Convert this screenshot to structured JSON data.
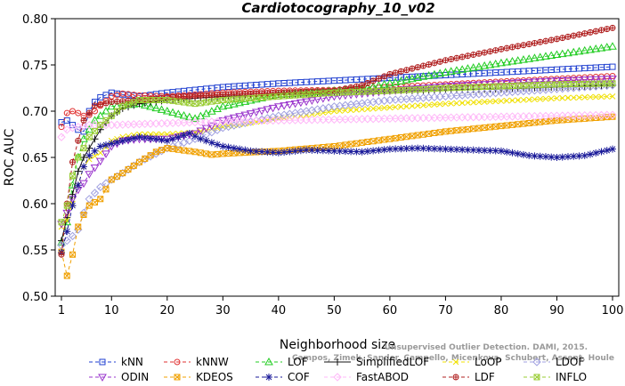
{
  "chart_data": {
    "type": "line",
    "title": "Cardiotocography_10_v02",
    "xlabel": "Neighborhood size",
    "ylabel": "ROC AUC",
    "xlim": [
      0,
      100
    ],
    "ylim": [
      0.5,
      0.8
    ],
    "xticks": [
      1,
      10,
      20,
      30,
      40,
      50,
      60,
      70,
      80,
      90,
      100
    ],
    "yticks": [
      "0.50",
      "0.55",
      "0.60",
      "0.65",
      "0.70",
      "0.75",
      "0.80"
    ],
    "grid": false,
    "legend_position": "bottom",
    "watermark": [
      "Unsupervised Outlier Detection. DAMI, 2015.",
      "Campos, Zimek, Sander, Campello, Micenkova, Schubert, Assent, Houle"
    ],
    "series": [
      {
        "name": "kNN",
        "color": "#1f3fd0",
        "marker": "square",
        "dash": "4,3",
        "anchors": [
          [
            1,
            0.688
          ],
          [
            2,
            0.69
          ],
          [
            3,
            0.685
          ],
          [
            4,
            0.68
          ],
          [
            5,
            0.678
          ],
          [
            6,
            0.7
          ],
          [
            7,
            0.71
          ],
          [
            8,
            0.715
          ],
          [
            10,
            0.72
          ],
          [
            12,
            0.718
          ],
          [
            15,
            0.716
          ],
          [
            20,
            0.72
          ],
          [
            30,
            0.726
          ],
          [
            40,
            0.73
          ],
          [
            50,
            0.733
          ],
          [
            60,
            0.736
          ],
          [
            70,
            0.739
          ],
          [
            80,
            0.742
          ],
          [
            90,
            0.745
          ],
          [
            100,
            0.748
          ]
        ]
      },
      {
        "name": "kNNW",
        "color": "#e03030",
        "marker": "circle",
        "dash": "4,3",
        "anchors": [
          [
            1,
            0.683
          ],
          [
            2,
            0.698
          ],
          [
            3,
            0.7
          ],
          [
            4,
            0.698
          ],
          [
            5,
            0.695
          ],
          [
            6,
            0.696
          ],
          [
            7,
            0.7
          ],
          [
            8,
            0.706
          ],
          [
            10,
            0.716
          ],
          [
            12,
            0.719
          ],
          [
            15,
            0.717
          ],
          [
            20,
            0.716
          ],
          [
            30,
            0.72
          ],
          [
            40,
            0.722
          ],
          [
            50,
            0.723
          ],
          [
            60,
            0.726
          ],
          [
            70,
            0.729
          ],
          [
            80,
            0.732
          ],
          [
            90,
            0.735
          ],
          [
            100,
            0.738
          ]
        ]
      },
      {
        "name": "LOF",
        "color": "#22cc22",
        "marker": "triangle",
        "dash": "4,3",
        "anchors": [
          [
            1,
            0.558
          ],
          [
            2,
            0.58
          ],
          [
            3,
            0.62
          ],
          [
            4,
            0.65
          ],
          [
            5,
            0.67
          ],
          [
            7,
            0.69
          ],
          [
            10,
            0.705
          ],
          [
            15,
            0.708
          ],
          [
            20,
            0.7
          ],
          [
            25,
            0.692
          ],
          [
            30,
            0.705
          ],
          [
            40,
            0.718
          ],
          [
            50,
            0.722
          ],
          [
            55,
            0.724
          ],
          [
            60,
            0.73
          ],
          [
            70,
            0.742
          ],
          [
            80,
            0.752
          ],
          [
            90,
            0.761
          ],
          [
            100,
            0.77
          ]
        ]
      },
      {
        "name": "SimplifiedLOF",
        "color": "#111111",
        "marker": "plus",
        "dash": "none",
        "anchors": [
          [
            1,
            0.56
          ],
          [
            2,
            0.585
          ],
          [
            3,
            0.61
          ],
          [
            4,
            0.635
          ],
          [
            5,
            0.65
          ],
          [
            6,
            0.66
          ],
          [
            8,
            0.68
          ],
          [
            10,
            0.695
          ],
          [
            12,
            0.703
          ],
          [
            15,
            0.708
          ],
          [
            20,
            0.712
          ],
          [
            30,
            0.716
          ],
          [
            40,
            0.718
          ],
          [
            50,
            0.72
          ],
          [
            60,
            0.722
          ],
          [
            70,
            0.723
          ],
          [
            80,
            0.724
          ],
          [
            90,
            0.726
          ],
          [
            100,
            0.728
          ]
        ]
      },
      {
        "name": "LoOP",
        "color": "#f0e000",
        "marker": "x",
        "dash": "4,3",
        "anchors": [
          [
            1,
            0.575
          ],
          [
            2,
            0.582
          ],
          [
            3,
            0.6
          ],
          [
            4,
            0.62
          ],
          [
            5,
            0.64
          ],
          [
            6,
            0.648
          ],
          [
            8,
            0.655
          ],
          [
            10,
            0.668
          ],
          [
            12,
            0.672
          ],
          [
            15,
            0.675
          ],
          [
            20,
            0.675
          ],
          [
            25,
            0.677
          ],
          [
            30,
            0.683
          ],
          [
            40,
            0.692
          ],
          [
            50,
            0.7
          ],
          [
            60,
            0.704
          ],
          [
            70,
            0.708
          ],
          [
            80,
            0.711
          ],
          [
            90,
            0.714
          ],
          [
            100,
            0.716
          ]
        ]
      },
      {
        "name": "LDOF",
        "color": "#a0a0e0",
        "marker": "diamond",
        "dash": "4,3",
        "anchors": [
          [
            1,
            0.555
          ],
          [
            2,
            0.56
          ],
          [
            3,
            0.565
          ],
          [
            4,
            0.572
          ],
          [
            5,
            0.59
          ],
          [
            6,
            0.605
          ],
          [
            8,
            0.618
          ],
          [
            10,
            0.626
          ],
          [
            12,
            0.633
          ],
          [
            15,
            0.645
          ],
          [
            20,
            0.66
          ],
          [
            25,
            0.67
          ],
          [
            30,
            0.682
          ],
          [
            40,
            0.695
          ],
          [
            50,
            0.705
          ],
          [
            60,
            0.712
          ],
          [
            70,
            0.716
          ],
          [
            80,
            0.72
          ],
          [
            90,
            0.724
          ],
          [
            100,
            0.728
          ]
        ]
      },
      {
        "name": "ODIN",
        "color": "#9933cc",
        "marker": "triangle-down",
        "dash": "4,3",
        "anchors": [
          [
            1,
            0.578
          ],
          [
            2,
            0.59
          ],
          [
            3,
            0.605
          ],
          [
            4,
            0.615
          ],
          [
            5,
            0.622
          ],
          [
            6,
            0.632
          ],
          [
            8,
            0.646
          ],
          [
            10,
            0.662
          ],
          [
            12,
            0.668
          ],
          [
            15,
            0.67
          ],
          [
            20,
            0.67
          ],
          [
            25,
            0.676
          ],
          [
            30,
            0.69
          ],
          [
            40,
            0.705
          ],
          [
            50,
            0.716
          ],
          [
            60,
            0.722
          ],
          [
            70,
            0.727
          ],
          [
            80,
            0.73
          ],
          [
            90,
            0.733
          ],
          [
            100,
            0.735
          ]
        ]
      },
      {
        "name": "KDEOS",
        "color": "#f0a000",
        "marker": "square-x",
        "dash": "4,3",
        "anchors": [
          [
            1,
            0.548
          ],
          [
            2,
            0.522
          ],
          [
            3,
            0.545
          ],
          [
            4,
            0.575
          ],
          [
            5,
            0.588
          ],
          [
            6,
            0.598
          ],
          [
            8,
            0.605
          ],
          [
            10,
            0.626
          ],
          [
            12,
            0.633
          ],
          [
            15,
            0.645
          ],
          [
            18,
            0.656
          ],
          [
            20,
            0.66
          ],
          [
            25,
            0.656
          ],
          [
            28,
            0.653
          ],
          [
            30,
            0.654
          ],
          [
            40,
            0.657
          ],
          [
            50,
            0.662
          ],
          [
            60,
            0.67
          ],
          [
            70,
            0.678
          ],
          [
            80,
            0.684
          ],
          [
            90,
            0.69
          ],
          [
            100,
            0.694
          ]
        ]
      },
      {
        "name": "COF",
        "color": "#1a1a99",
        "marker": "star",
        "dash": "4,3",
        "anchors": [
          [
            1,
            0.547
          ],
          [
            2,
            0.57
          ],
          [
            3,
            0.598
          ],
          [
            4,
            0.62
          ],
          [
            5,
            0.64
          ],
          [
            6,
            0.652
          ],
          [
            8,
            0.662
          ],
          [
            10,
            0.665
          ],
          [
            12,
            0.668
          ],
          [
            15,
            0.672
          ],
          [
            18,
            0.67
          ],
          [
            20,
            0.668
          ],
          [
            22,
            0.672
          ],
          [
            24,
            0.676
          ],
          [
            26,
            0.67
          ],
          [
            30,
            0.662
          ],
          [
            35,
            0.657
          ],
          [
            40,
            0.655
          ],
          [
            45,
            0.658
          ],
          [
            50,
            0.657
          ],
          [
            55,
            0.656
          ],
          [
            60,
            0.659
          ],
          [
            65,
            0.66
          ],
          [
            70,
            0.659
          ],
          [
            75,
            0.658
          ],
          [
            80,
            0.657
          ],
          [
            85,
            0.652
          ],
          [
            90,
            0.65
          ],
          [
            95,
            0.652
          ],
          [
            100,
            0.659
          ]
        ]
      },
      {
        "name": "FastABOD",
        "color": "#ffb8f8",
        "marker": "diamond",
        "dash": "4,3",
        "anchors": [
          [
            1,
            0.672
          ],
          [
            2,
            0.68
          ],
          [
            3,
            0.682
          ],
          [
            4,
            0.683
          ],
          [
            5,
            0.684
          ],
          [
            6,
            0.685
          ],
          [
            8,
            0.685
          ],
          [
            10,
            0.685
          ],
          [
            15,
            0.686
          ],
          [
            20,
            0.687
          ],
          [
            30,
            0.689
          ],
          [
            40,
            0.69
          ],
          [
            50,
            0.691
          ],
          [
            60,
            0.692
          ],
          [
            70,
            0.693
          ],
          [
            80,
            0.694
          ],
          [
            90,
            0.695
          ],
          [
            100,
            0.696
          ]
        ]
      },
      {
        "name": "LDF",
        "color": "#b02020",
        "marker": "circle-plus",
        "dash": "4,3",
        "anchors": [
          [
            1,
            0.545
          ],
          [
            2,
            0.6
          ],
          [
            3,
            0.645
          ],
          [
            4,
            0.668
          ],
          [
            5,
            0.69
          ],
          [
            7,
            0.706
          ],
          [
            10,
            0.71
          ],
          [
            15,
            0.712
          ],
          [
            20,
            0.715
          ],
          [
            30,
            0.718
          ],
          [
            40,
            0.72
          ],
          [
            50,
            0.722
          ],
          [
            55,
            0.728
          ],
          [
            60,
            0.74
          ],
          [
            70,
            0.755
          ],
          [
            80,
            0.767
          ],
          [
            90,
            0.778
          ],
          [
            100,
            0.79
          ]
        ]
      },
      {
        "name": "INFLO",
        "color": "#99cc33",
        "marker": "square-x",
        "dash": "4,3",
        "anchors": [
          [
            1,
            0.58
          ],
          [
            2,
            0.598
          ],
          [
            3,
            0.63
          ],
          [
            4,
            0.65
          ],
          [
            5,
            0.66
          ],
          [
            6,
            0.672
          ],
          [
            8,
            0.685
          ],
          [
            10,
            0.695
          ],
          [
            12,
            0.705
          ],
          [
            15,
            0.712
          ],
          [
            20,
            0.712
          ],
          [
            25,
            0.708
          ],
          [
            30,
            0.712
          ],
          [
            40,
            0.716
          ],
          [
            50,
            0.72
          ],
          [
            60,
            0.722
          ],
          [
            70,
            0.725
          ],
          [
            80,
            0.727
          ],
          [
            90,
            0.729
          ],
          [
            100,
            0.73
          ]
        ]
      }
    ]
  }
}
